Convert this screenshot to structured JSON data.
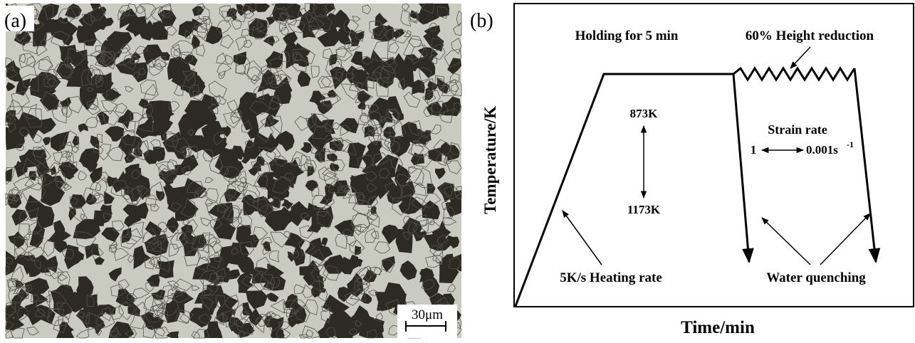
{
  "panel_a": {
    "label": "(a)",
    "scale_bar": "30μm"
  },
  "panel_b": {
    "label": "(b)",
    "y_axis_label": "Temperature/K",
    "x_axis_label": "Time/min",
    "annotations": {
      "holding": "Holding for 5 min",
      "reduction": "60% Height reduction",
      "temp_high": "873K",
      "temp_low": "1173K",
      "strain_rate": "Strain rate",
      "rate_high": "1",
      "rate_low": "0.001s",
      "rate_unit_sup": "-1",
      "heating": "5K/s Heating rate",
      "quenching": "Water quenching"
    }
  }
}
